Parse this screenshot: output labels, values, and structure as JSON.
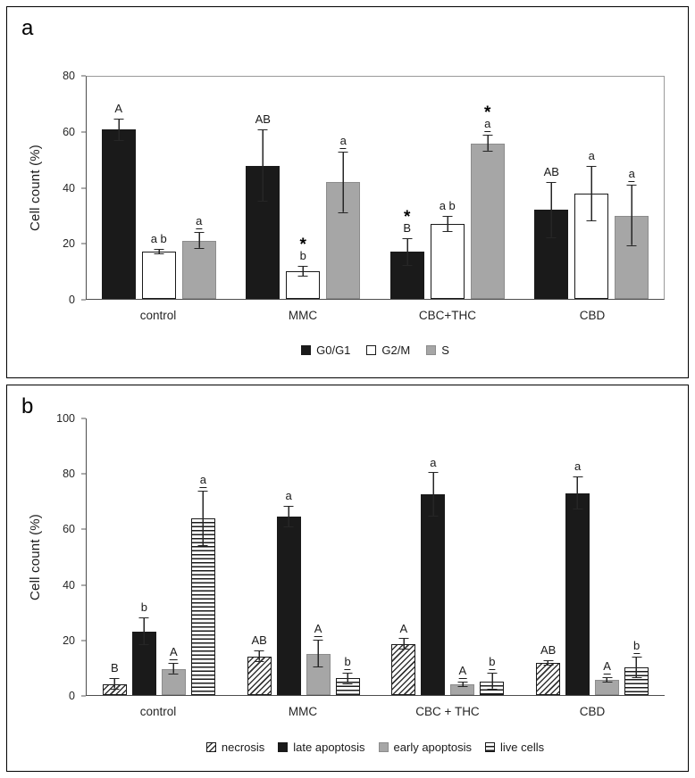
{
  "panels": [
    {
      "label": "a"
    },
    {
      "label": "b"
    }
  ],
  "colors": {
    "bar_black": "#1a1a1a",
    "bar_white": "#ffffff",
    "bar_gray": "#a6a6a6",
    "axis": "#4d4d4d"
  },
  "chart_data": [
    {
      "type": "bar",
      "title": "",
      "xlabel": "",
      "ylabel": "Cell count (%)",
      "ylim": [
        0,
        80
      ],
      "yticks": [
        0,
        20,
        40,
        60,
        80
      ],
      "grid": false,
      "legend_position": "bottom",
      "categories": [
        "control",
        "MMC",
        "CBC+THC",
        "CBD"
      ],
      "series": [
        {
          "name": "G0/G1",
          "fill": "black",
          "values": [
            61,
            48,
            17,
            32
          ],
          "errors": [
            4,
            13,
            5,
            10
          ],
          "letters": [
            "A",
            "AB",
            "B",
            "AB"
          ],
          "asterisks": [
            "",
            "",
            "*",
            ""
          ],
          "letters_underlined": false
        },
        {
          "name": "G2/M",
          "fill": "white",
          "values": [
            17,
            10,
            27,
            38
          ],
          "errors": [
            1,
            2,
            3,
            10
          ],
          "letters": [
            "a b",
            "b",
            "a b",
            "a"
          ],
          "asterisks": [
            "",
            "*",
            "",
            ""
          ],
          "letters_underlined": false
        },
        {
          "name": "S",
          "fill": "gray",
          "values": [
            21,
            42,
            56,
            30
          ],
          "errors": [
            3,
            11,
            3,
            11
          ],
          "letters": [
            "a",
            "a",
            "a",
            "a"
          ],
          "asterisks": [
            "",
            "",
            "*",
            ""
          ],
          "letters_underlined": true
        }
      ]
    },
    {
      "type": "bar",
      "title": "",
      "xlabel": "",
      "ylabel": "Cell count (%)",
      "ylim": [
        0,
        100
      ],
      "yticks": [
        0,
        20,
        40,
        60,
        80,
        100
      ],
      "grid": false,
      "legend_position": "bottom",
      "categories": [
        "control",
        "MMC",
        "CBC + THC",
        "CBD"
      ],
      "series": [
        {
          "name": "necrosis",
          "fill": "hatch-diag",
          "values": [
            4,
            14,
            18.5,
            11.5
          ],
          "errors": [
            2,
            2,
            2,
            1
          ],
          "letters": [
            "B",
            "AB",
            "A",
            "AB"
          ],
          "asterisks": [
            "",
            "",
            "",
            ""
          ],
          "letters_underlined": false
        },
        {
          "name": "late apoptosis",
          "fill": "black",
          "values": [
            23,
            64.5,
            72.5,
            73
          ],
          "errors": [
            5,
            4,
            8,
            6
          ],
          "letters": [
            "b",
            "a",
            "a",
            "a"
          ],
          "asterisks": [
            "",
            "",
            "",
            ""
          ],
          "letters_underlined": false
        },
        {
          "name": "early apoptosis",
          "fill": "gray",
          "values": [
            9.5,
            15,
            4,
            5.5
          ],
          "errors": [
            2,
            5,
            1,
            1
          ],
          "letters": [
            "A",
            "A",
            "A",
            "A"
          ],
          "asterisks": [
            "",
            "",
            "",
            ""
          ],
          "letters_underlined": true
        },
        {
          "name": "live cells",
          "fill": "hatch-horiz",
          "values": [
            64,
            6,
            5,
            10
          ],
          "errors": [
            10,
            2,
            3,
            4
          ],
          "letters": [
            "a",
            "b",
            "b",
            "b"
          ],
          "asterisks": [
            "",
            "",
            "",
            ""
          ],
          "letters_underlined": true
        }
      ]
    }
  ]
}
